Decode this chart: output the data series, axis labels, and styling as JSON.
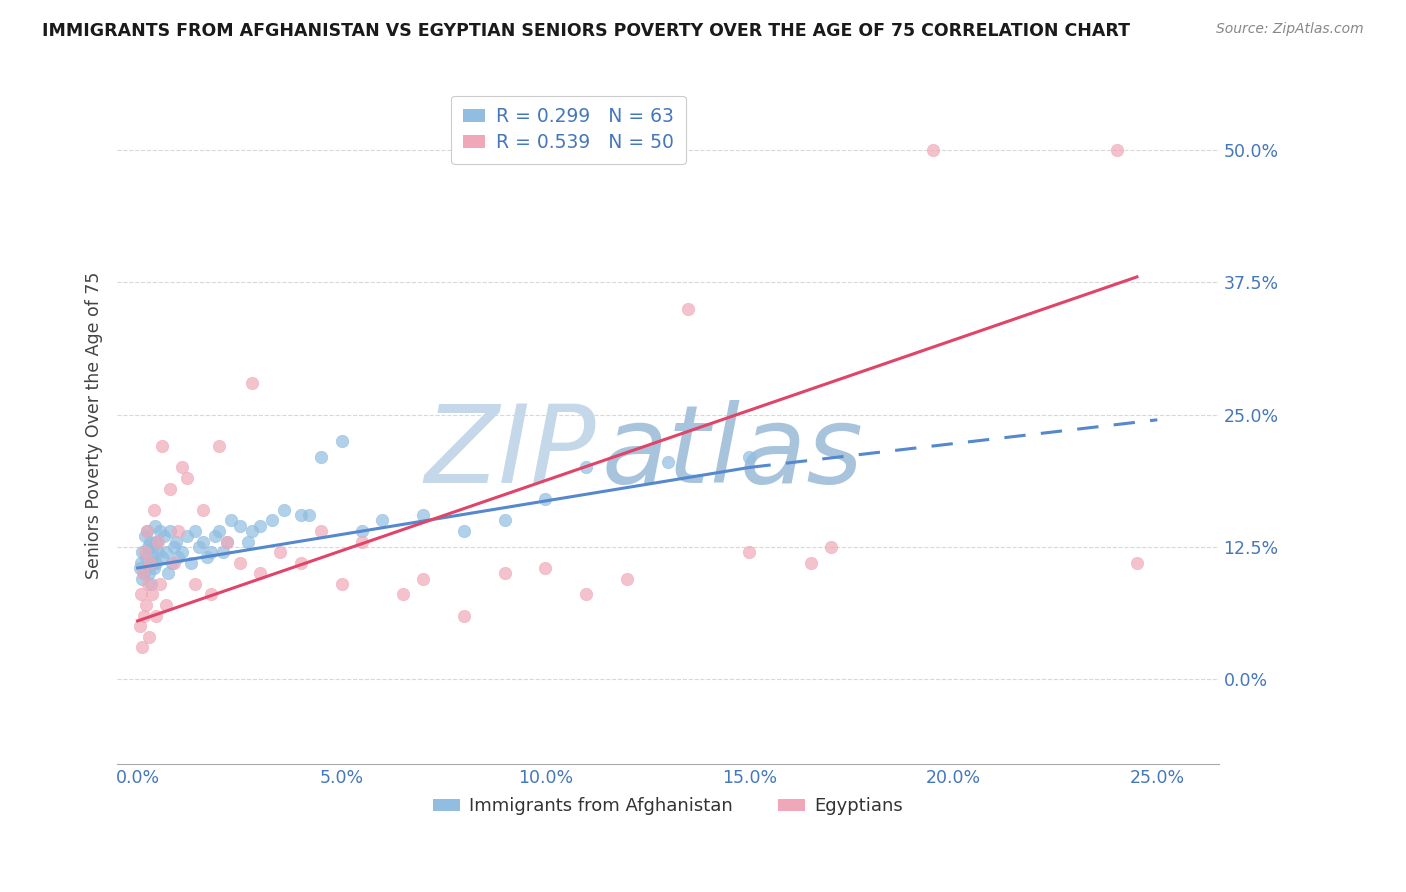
{
  "title": "IMMIGRANTS FROM AFGHANISTAN VS EGYPTIAN SENIORS POVERTY OVER THE AGE OF 75 CORRELATION CHART",
  "source": "Source: ZipAtlas.com",
  "xlabel_vals": [
    0.0,
    5.0,
    10.0,
    15.0,
    20.0,
    25.0
  ],
  "ylabel_vals": [
    0.0,
    12.5,
    25.0,
    37.5,
    50.0
  ],
  "xlim": [
    -0.5,
    26.5
  ],
  "ylim": [
    -8.0,
    56.0
  ],
  "ylabel": "Seniors Poverty Over the Age of 75",
  "afghanistan_color": "#90bde0",
  "egypt_color": "#f0a8b8",
  "afghanistan_line_color": "#5588cc",
  "egypt_line_color": "#e04468",
  "watermark_zip_color": "#c5d8ea",
  "watermark_atlas_color": "#a8c4dc",
  "afghanistan_scatter_x": [
    0.05,
    0.08,
    0.1,
    0.12,
    0.15,
    0.18,
    0.2,
    0.22,
    0.25,
    0.28,
    0.3,
    0.32,
    0.35,
    0.38,
    0.4,
    0.42,
    0.45,
    0.48,
    0.5,
    0.55,
    0.6,
    0.65,
    0.7,
    0.75,
    0.8,
    0.85,
    0.9,
    0.95,
    1.0,
    1.1,
    1.2,
    1.3,
    1.4,
    1.5,
    1.6,
    1.7,
    1.8,
    1.9,
    2.0,
    2.1,
    2.2,
    2.3,
    2.5,
    2.7,
    3.0,
    3.3,
    3.6,
    4.0,
    4.5,
    5.0,
    5.5,
    6.0,
    7.0,
    8.0,
    9.0,
    10.0,
    11.0,
    13.0,
    15.0,
    2.8,
    0.35,
    0.45,
    4.2
  ],
  "afghanistan_scatter_y": [
    10.5,
    11.0,
    9.5,
    12.0,
    10.0,
    13.5,
    11.5,
    14.0,
    12.5,
    10.0,
    13.0,
    9.0,
    11.0,
    12.5,
    10.5,
    14.5,
    11.0,
    13.0,
    12.0,
    14.0,
    11.5,
    13.5,
    12.0,
    10.0,
    14.0,
    11.0,
    12.5,
    13.0,
    11.5,
    12.0,
    13.5,
    11.0,
    14.0,
    12.5,
    13.0,
    11.5,
    12.0,
    13.5,
    14.0,
    12.0,
    13.0,
    15.0,
    14.5,
    13.0,
    14.5,
    15.0,
    16.0,
    15.5,
    21.0,
    22.5,
    14.0,
    15.0,
    15.5,
    14.0,
    15.0,
    17.0,
    20.0,
    20.5,
    21.0,
    14.0,
    11.5,
    13.0,
    15.5
  ],
  "egypt_scatter_x": [
    0.05,
    0.08,
    0.1,
    0.13,
    0.15,
    0.18,
    0.2,
    0.23,
    0.25,
    0.28,
    0.3,
    0.35,
    0.4,
    0.45,
    0.5,
    0.55,
    0.6,
    0.7,
    0.8,
    0.9,
    1.0,
    1.1,
    1.2,
    1.4,
    1.6,
    1.8,
    2.0,
    2.2,
    2.5,
    2.8,
    3.0,
    3.5,
    4.0,
    4.5,
    5.0,
    5.5,
    6.5,
    7.0,
    8.0,
    9.0,
    10.0,
    11.0,
    12.0,
    13.5,
    15.0,
    16.5,
    17.0,
    19.5,
    24.0,
    24.5
  ],
  "egypt_scatter_y": [
    5.0,
    8.0,
    3.0,
    10.0,
    6.0,
    12.0,
    7.0,
    14.0,
    9.0,
    4.0,
    11.0,
    8.0,
    16.0,
    6.0,
    13.0,
    9.0,
    22.0,
    7.0,
    18.0,
    11.0,
    14.0,
    20.0,
    19.0,
    9.0,
    16.0,
    8.0,
    22.0,
    13.0,
    11.0,
    28.0,
    10.0,
    12.0,
    11.0,
    14.0,
    9.0,
    13.0,
    8.0,
    9.5,
    6.0,
    10.0,
    10.5,
    8.0,
    9.5,
    35.0,
    12.0,
    11.0,
    12.5,
    50.0,
    50.0,
    11.0
  ],
  "afghanistan_trend_x": [
    0.0,
    15.0,
    25.0
  ],
  "afghanistan_trend_y": [
    10.5,
    20.0,
    24.5
  ],
  "afghanistan_solid_end": 15.0,
  "egypt_trend_x0": 0.0,
  "egypt_trend_x1": 24.5,
  "egypt_trend_y0": 5.5,
  "egypt_trend_y1": 38.0,
  "grid_color": "#d8d8d8",
  "bg_color": "#ffffff",
  "tick_color": "#4477bb",
  "title_color": "#1a1a1a",
  "source_color": "#888888",
  "ylabel_label_color": "#444444"
}
